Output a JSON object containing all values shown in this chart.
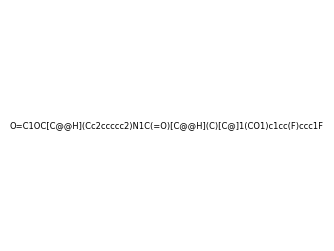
{
  "smiles": "O=C1OC[C@@H](Cc2ccccc2)N1C(=O)[C@@H](C)[C@]1(CO1)c1cc(F)ccc1F",
  "image_size": 300,
  "background_color": "#f0f0f0",
  "title": ""
}
